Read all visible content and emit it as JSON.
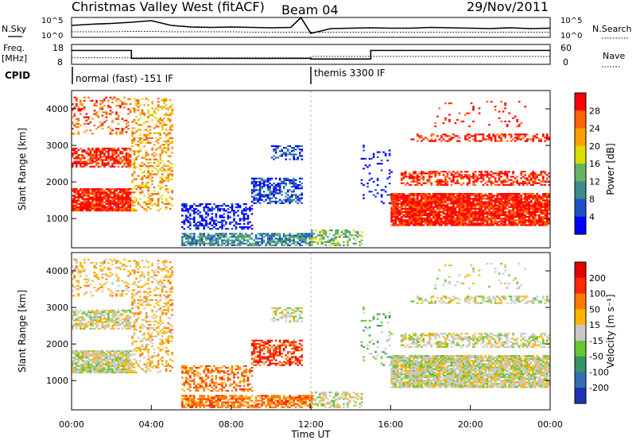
{
  "header": {
    "title": "Christmas Valley West (fitACF)",
    "beam": "Beam 04",
    "date": "29/Nov/2011"
  },
  "chart_data": [
    {
      "type": "line",
      "name_label": "N.Sky",
      "right_label": "N.Search",
      "left_ticks": [
        "10^5",
        "10^0"
      ],
      "right_ticks": [
        "10^5",
        "10^0"
      ],
      "x": [
        0,
        1,
        2,
        3,
        4,
        5,
        6,
        7,
        8,
        9,
        10,
        11,
        11.5,
        12,
        13,
        14,
        15,
        16,
        17,
        18,
        19,
        20,
        21,
        22,
        23,
        24
      ],
      "series": [
        {
          "values": [
            3.0,
            3.3,
            3.5,
            3.8,
            4.2,
            3.0,
            2.6,
            2.5,
            2.6,
            2.5,
            2.4,
            2.5,
            5.0,
            1.0,
            2.2,
            2.3,
            2.4,
            2.3,
            2.3,
            2.5,
            2.4,
            2.3,
            2.2,
            2.4,
            2.2,
            2.3
          ]
        },
        {
          "values": [
            1.4,
            1.4,
            1.4,
            1.5,
            1.5,
            1.4,
            1.4,
            1.4,
            1.4,
            1.3,
            1.3,
            1.3,
            1.3,
            1.3,
            1.3,
            1.3,
            1.3,
            1.3,
            1.3,
            1.3,
            1.3,
            1.3,
            1.3,
            1.3,
            1.3,
            1.3
          ]
        }
      ]
    },
    {
      "type": "line",
      "left_label_line1": "Freq.",
      "left_label_line2": "[MHz]",
      "right_label": "Nave",
      "left_ticks": [
        "18",
        "8"
      ],
      "right_ticks": [
        "60",
        "0"
      ],
      "freq_steps": [
        [
          0,
          15.5
        ],
        [
          3.0,
          9.5
        ],
        [
          12.0,
          9.0
        ],
        [
          15.0,
          15.5
        ],
        [
          24.0,
          15.5
        ]
      ],
      "nave_steps": [
        [
          0,
          20
        ],
        [
          3.0,
          20
        ],
        [
          12.0,
          24
        ],
        [
          24.0,
          24
        ]
      ]
    },
    {
      "type": "table",
      "label": "CPID",
      "segments": [
        {
          "start": 0,
          "end": 12,
          "text": "normal (fast) -151 IF"
        },
        {
          "start": 12,
          "end": 24,
          "text": "themis 3300 IF"
        }
      ]
    },
    {
      "type": "heatmap",
      "ylabel": "Slant Range [km]",
      "yticks": [
        "1000",
        "2000",
        "3000",
        "4000"
      ],
      "ylim": [
        200,
        4500
      ],
      "colorbar_label": "Power [dB]",
      "colorbar_ticks": [
        "4",
        "8",
        "12",
        "16",
        "20",
        "24",
        "28"
      ],
      "colors": [
        "#0000ff",
        "#1e50c8",
        "#3c8c8c",
        "#64b464",
        "#dcdc00",
        "#ffa000",
        "#ff6400",
        "#ff0000"
      ],
      "vlim": [
        0,
        32
      ]
    },
    {
      "type": "heatmap",
      "ylabel": "Slant Range [km]",
      "yticks": [
        "1000",
        "2000",
        "3000",
        "4000"
      ],
      "ylim": [
        200,
        4500
      ],
      "colorbar_label": "Velocity [m s⁻¹]",
      "colorbar_ticks": [
        "200",
        "100",
        "50",
        "15",
        "-15",
        "-50",
        "-100",
        "-200"
      ],
      "colors": [
        "#1e32b4",
        "#326eb4",
        "#329664",
        "#64c832",
        "#c8c8c8",
        "#ffb400",
        "#ff7800",
        "#ff2800",
        "#e60000"
      ],
      "xticks": [
        "00:00",
        "04:00",
        "08:00",
        "12:00",
        "16:00",
        "20:00",
        "00:00"
      ],
      "xlabel": "Time UT"
    }
  ]
}
